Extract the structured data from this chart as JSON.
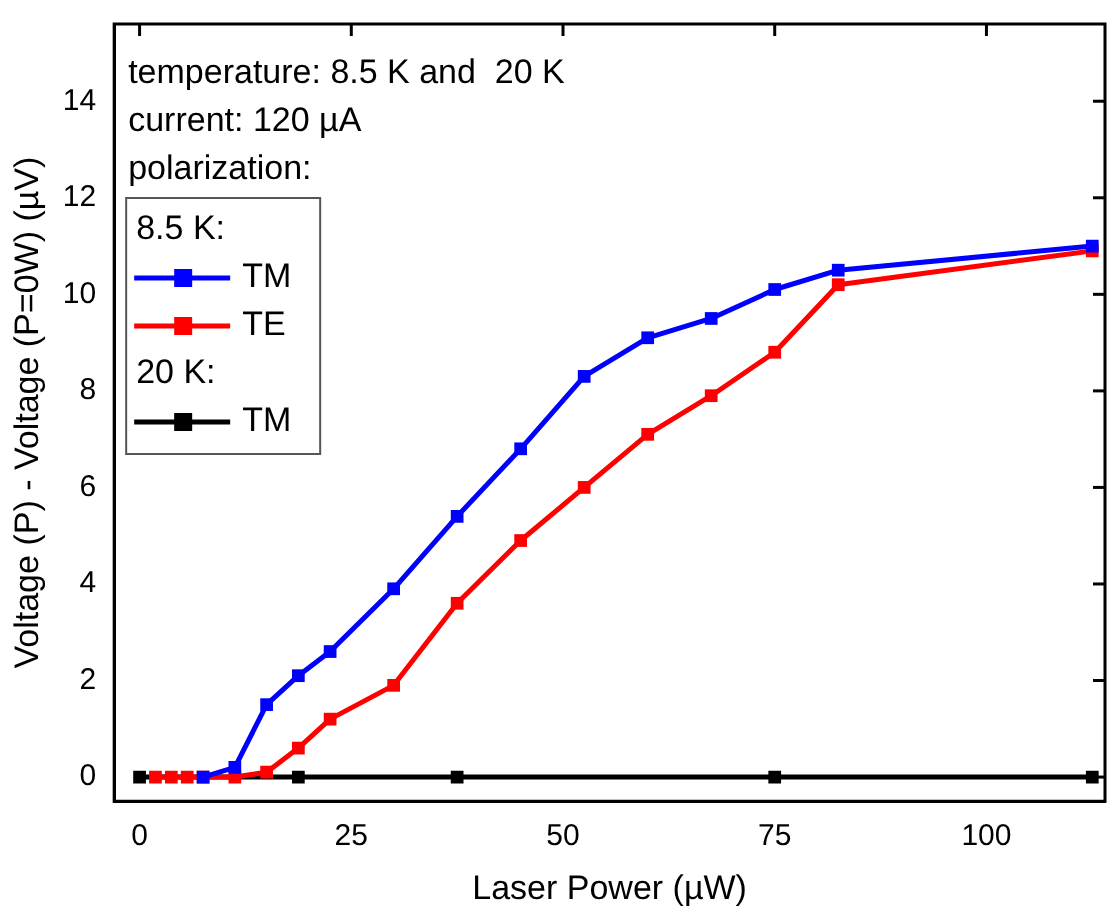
{
  "chart_data": {
    "type": "line",
    "xlabel": "Laser Power (µW)",
    "ylabel": "Voltage (P) - Voltage (P=0W) (µV)",
    "annotations": [
      "temperature: 8.5 K and  20 K",
      "current: 120 µA",
      "polarization:",
      "8.5 K:",
      "20 K:"
    ],
    "xlim": [
      -3,
      114
    ],
    "xticks": [
      0,
      25,
      50,
      75,
      100
    ],
    "ylim": [
      -0.5,
      15.6
    ],
    "yticks": [
      0,
      2,
      4,
      6,
      8,
      10,
      12,
      14
    ],
    "marker": "square",
    "legend": "top left",
    "grid": false,
    "series": [
      {
        "name": "TM",
        "color": "#0000ff",
        "x": [
          7.5,
          11.25,
          15,
          18.75,
          22.5,
          30,
          37.5,
          45,
          52.5,
          60,
          67.5,
          75,
          82.5,
          112.5
        ],
        "values": [
          0,
          0.2,
          1.5,
          2.1,
          2.6,
          3.9,
          5.4,
          6.8,
          8.3,
          9.1,
          9.5,
          10.1,
          10.5,
          11.0
        ]
      },
      {
        "name": "TE",
        "color": "#ff0000",
        "x": [
          1.875,
          3.75,
          5.625,
          7.5,
          11.25,
          15,
          18.75,
          22.5,
          30,
          37.5,
          45,
          52.5,
          60,
          67.5,
          75,
          82.5,
          112.5
        ],
        "values": [
          0,
          0,
          0,
          0,
          0,
          0.1,
          0.6,
          1.2,
          1.9,
          3.6,
          4.9,
          6.0,
          7.1,
          7.9,
          8.8,
          10.2,
          10.9
        ]
      },
      {
        "name": "TM",
        "color": "#000000",
        "x": [
          0,
          18.75,
          37.5,
          75,
          112.5
        ],
        "values": [
          0,
          0,
          0,
          0,
          0
        ]
      }
    ]
  }
}
